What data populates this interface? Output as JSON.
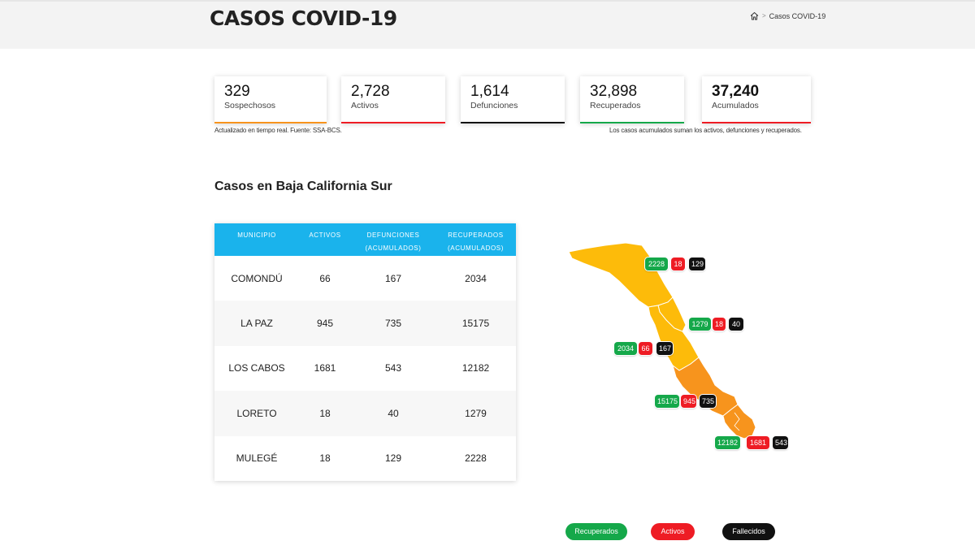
{
  "header": {
    "title": "CASOS COVID-19",
    "breadcrumb": {
      "home_icon": "home-icon",
      "separator": ">",
      "current": "Casos COVID-19"
    }
  },
  "stats": [
    {
      "value": "329",
      "label": "Sospechosos",
      "color": "#f7941d"
    },
    {
      "value": "2,728",
      "label": "Activos",
      "color": "#ee1c24"
    },
    {
      "value": "1,614",
      "label": "Defunciones",
      "color": "#111111"
    },
    {
      "value": "32,898",
      "label": "Recuperados",
      "color": "#15a84a"
    },
    {
      "value": "37,240",
      "label": "Acumulados",
      "color": "#ee1c24"
    }
  ],
  "notes": {
    "left": "Actualizado en tiempo real. Fuente: SSA-BCS.",
    "right": "Los casos acumulados suman los activos, defunciones y recuperados."
  },
  "section_title": "Casos en Baja California Sur",
  "table": {
    "headers": [
      {
        "line1": "MUNICIPIO",
        "line2": ""
      },
      {
        "line1": "ACTIVOS",
        "line2": ""
      },
      {
        "line1": "DEFUNCIONES",
        "line2": "(ACUMULADOS)"
      },
      {
        "line1": "RECUPERADOS",
        "line2": "(ACUMULADOS)"
      }
    ],
    "rows": [
      {
        "municipio": "COMONDÚ",
        "activos": "66",
        "defunciones": "167",
        "recuperados": "2034"
      },
      {
        "municipio": "LA PAZ",
        "activos": "945",
        "defunciones": "735",
        "recuperados": "15175"
      },
      {
        "municipio": "LOS CABOS",
        "activos": "1681",
        "defunciones": "543",
        "recuperados": "12182"
      },
      {
        "municipio": "LORETO",
        "activos": "18",
        "defunciones": "40",
        "recuperados": "1279"
      },
      {
        "municipio": "MULEGÉ",
        "activos": "18",
        "defunciones": "129",
        "recuperados": "2228"
      }
    ],
    "header_color": "#1ab3ec"
  },
  "map": {
    "colors": {
      "yellow": "#fdbb0a",
      "orange": "#f7941d"
    },
    "badges": {
      "mulege": {
        "recuperados": "2228",
        "activos": "18",
        "fallecidos": "129"
      },
      "loreto": {
        "recuperados": "1279",
        "activos": "18",
        "fallecidos": "40"
      },
      "comondu": {
        "recuperados": "2034",
        "activos": "66",
        "fallecidos": "167"
      },
      "lapaz": {
        "recuperados": "15175",
        "activos": "945",
        "fallecidos": "735"
      },
      "loscabos": {
        "recuperados": "12182",
        "activos": "1681",
        "fallecidos": "543"
      }
    }
  },
  "legend": {
    "recuperados": "Recuperados",
    "activos": "Activos",
    "fallecidos": "Fallecidos"
  }
}
